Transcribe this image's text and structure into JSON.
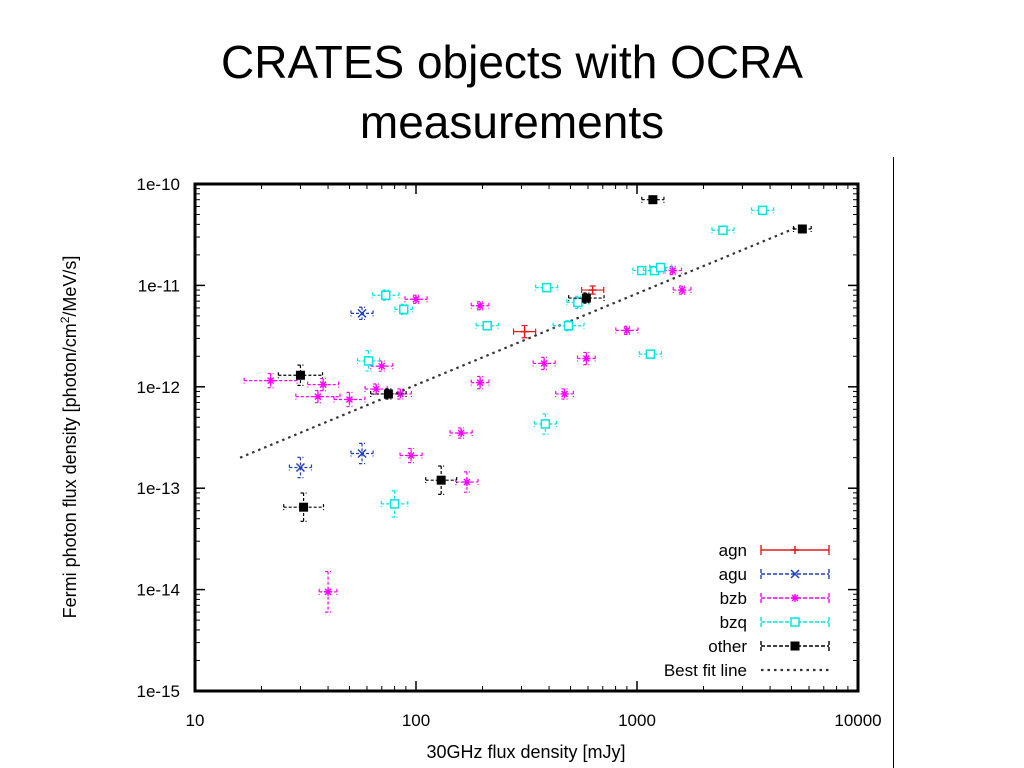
{
  "slide": {
    "title_line1": "CRATES objects with OCRA",
    "title_line2": "measurements"
  },
  "chart_data": {
    "type": "scatter",
    "xlabel": "30GHz flux density [mJy]",
    "ylabel": "Fermi photon flux density [photon/cm²/MeV/s]",
    "x_scale": "log",
    "y_scale": "log",
    "xlim": [
      10,
      10000
    ],
    "ylim": [
      1e-15,
      1e-10
    ],
    "x_ticks": [
      10,
      100,
      1000,
      10000
    ],
    "x_tick_labels": [
      "10",
      "100",
      "1000",
      "10000"
    ],
    "y_ticks": [
      1e-15,
      1e-14,
      1e-13,
      1e-12,
      1e-11,
      1e-10
    ],
    "y_tick_labels": [
      "1e-15",
      "1e-14",
      "1e-13",
      "1e-12",
      "1e-11",
      "1e-10"
    ],
    "grid": false,
    "legend_position": "bottom-right",
    "series": [
      {
        "name": "agn",
        "color": "#e41a1c",
        "marker": "plus",
        "points": [
          {
            "x": 310,
            "y": 3.5e-12,
            "xerr": 0.05,
            "yerr": 0.06
          },
          {
            "x": 630,
            "y": 9e-12,
            "xerr": 0.05,
            "yerr": 0.04
          }
        ]
      },
      {
        "name": "agu",
        "color": "#1f3fbf",
        "marker": "x",
        "points": [
          {
            "x": 57,
            "y": 5.3e-12,
            "xerr": 0.05,
            "yerr": 0.06
          },
          {
            "x": 30,
            "y": 1.6e-13,
            "xerr": 0.05,
            "yerr": 0.1
          },
          {
            "x": 57,
            "y": 2.2e-13,
            "xerr": 0.05,
            "yerr": 0.1
          }
        ]
      },
      {
        "name": "bzb",
        "color": "#ff00ff",
        "marker": "star",
        "points": [
          {
            "x": 100,
            "y": 7.3e-12,
            "xerr": 0.05,
            "yerr": 0.04
          },
          {
            "x": 195,
            "y": 6.3e-12,
            "xerr": 0.04,
            "yerr": 0.04
          },
          {
            "x": 1450,
            "y": 1.4e-11,
            "xerr": 0.04,
            "yerr": 0.04
          },
          {
            "x": 1600,
            "y": 9e-12,
            "xerr": 0.04,
            "yerr": 0.04
          },
          {
            "x": 900,
            "y": 3.6e-12,
            "xerr": 0.05,
            "yerr": 0.04
          },
          {
            "x": 590,
            "y": 1.9e-12,
            "xerr": 0.04,
            "yerr": 0.06
          },
          {
            "x": 380,
            "y": 1.7e-12,
            "xerr": 0.05,
            "yerr": 0.06
          },
          {
            "x": 195,
            "y": 1.1e-12,
            "xerr": 0.04,
            "yerr": 0.06
          },
          {
            "x": 470,
            "y": 8.5e-13,
            "xerr": 0.04,
            "yerr": 0.05
          },
          {
            "x": 160,
            "y": 3.5e-13,
            "xerr": 0.05,
            "yerr": 0.05
          },
          {
            "x": 95,
            "y": 2.1e-13,
            "xerr": 0.05,
            "yerr": 0.07
          },
          {
            "x": 170,
            "y": 1.15e-13,
            "xerr": 0.05,
            "yerr": 0.1
          },
          {
            "x": 70,
            "y": 1.6e-12,
            "xerr": 0.05,
            "yerr": 0.05
          },
          {
            "x": 66,
            "y": 9.5e-13,
            "xerr": 0.05,
            "yerr": 0.05
          },
          {
            "x": 85,
            "y": 8.5e-13,
            "xerr": 0.05,
            "yerr": 0.05
          },
          {
            "x": 22,
            "y": 1.15e-12,
            "xerr": 0.12,
            "yerr": 0.07
          },
          {
            "x": 38,
            "y": 1.05e-12,
            "xerr": 0.07,
            "yerr": 0.06
          },
          {
            "x": 36,
            "y": 8e-13,
            "xerr": 0.1,
            "yerr": 0.06
          },
          {
            "x": 50,
            "y": 7.5e-13,
            "xerr": 0.07,
            "yerr": 0.07
          },
          {
            "x": 40,
            "y": 9.5e-15,
            "xerr": 0.04,
            "yerr": 0.2
          }
        ]
      },
      {
        "name": "bzq",
        "color": "#00e5e5",
        "marker": "square",
        "points": [
          {
            "x": 73,
            "y": 8e-12,
            "xerr": 0.06,
            "yerr": 0.05
          },
          {
            "x": 88,
            "y": 5.8e-12,
            "xerr": 0.04,
            "yerr": 0.05
          },
          {
            "x": 390,
            "y": 9.5e-12,
            "xerr": 0.05,
            "yerr": 0.04
          },
          {
            "x": 540,
            "y": 6.8e-12,
            "xerr": 0.05,
            "yerr": 0.06
          },
          {
            "x": 210,
            "y": 4e-12,
            "xerr": 0.05,
            "yerr": 0.04
          },
          {
            "x": 490,
            "y": 4e-12,
            "xerr": 0.07,
            "yerr": 0.05
          },
          {
            "x": 2450,
            "y": 3.5e-11,
            "xerr": 0.05,
            "yerr": 0.03
          },
          {
            "x": 3700,
            "y": 5.5e-11,
            "xerr": 0.05,
            "yerr": 0.03
          },
          {
            "x": 1050,
            "y": 1.4e-11,
            "xerr": 0.04,
            "yerr": 0.03
          },
          {
            "x": 1200,
            "y": 1.4e-11,
            "xerr": 0.05,
            "yerr": 0.04
          },
          {
            "x": 1280,
            "y": 1.5e-11,
            "xerr": 0.05,
            "yerr": 0.04
          },
          {
            "x": 1150,
            "y": 2.1e-12,
            "xerr": 0.05,
            "yerr": 0.04
          },
          {
            "x": 61,
            "y": 1.8e-12,
            "xerr": 0.05,
            "yerr": 0.1
          },
          {
            "x": 385,
            "y": 4.3e-13,
            "xerr": 0.05,
            "yerr": 0.1
          },
          {
            "x": 80,
            "y": 7e-14,
            "xerr": 0.06,
            "yerr": 0.13
          }
        ]
      },
      {
        "name": "other",
        "color": "#000000",
        "marker": "filled-square",
        "points": [
          {
            "x": 1180,
            "y": 7e-11,
            "xerr": 0.05,
            "yerr": 0.02
          },
          {
            "x": 5600,
            "y": 3.6e-11,
            "xerr": 0.04,
            "yerr": 0.02
          },
          {
            "x": 590,
            "y": 7.5e-12,
            "xerr": 0.08,
            "yerr": 0.05
          },
          {
            "x": 75,
            "y": 8.5e-13,
            "xerr": 0.08,
            "yerr": 0.05
          },
          {
            "x": 30,
            "y": 1.3e-12,
            "xerr": 0.1,
            "yerr": 0.1
          },
          {
            "x": 130,
            "y": 1.2e-13,
            "xerr": 0.07,
            "yerr": 0.14
          },
          {
            "x": 31,
            "y": 6.5e-14,
            "xerr": 0.09,
            "yerr": 0.14
          }
        ]
      }
    ],
    "best_fit": {
      "name": "Best fit line",
      "color": "#333333",
      "style": "dotted",
      "from": {
        "x": 16,
        "y": 2e-13
      },
      "to": {
        "x": 5400,
        "y": 3.8e-11
      }
    }
  }
}
